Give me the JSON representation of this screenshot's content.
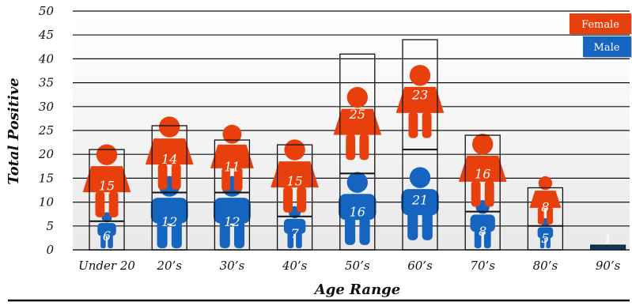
{
  "chart_data": {
    "type": "bar",
    "stacked": true,
    "categories": [
      "Under 20",
      "20’s",
      "30’s",
      "40’s",
      "50’s",
      "60’s",
      "70’s",
      "80’s",
      "90’s"
    ],
    "series": [
      {
        "name": "Male",
        "values": [
          6,
          12,
          12,
          7,
          16,
          21,
          8,
          5,
          1
        ],
        "color": "#1565c0"
      },
      {
        "name": "Female",
        "values": [
          15,
          14,
          11,
          15,
          25,
          23,
          16,
          8,
          0
        ],
        "color": "#e8400c"
      }
    ],
    "xlabel": "Age Range",
    "ylabel": "Total Positive",
    "ylim": [
      0,
      50
    ],
    "yticks": [
      0,
      5,
      10,
      15,
      20,
      25,
      30,
      35,
      40,
      45,
      50
    ],
    "grid": true,
    "legend_position": "top-right",
    "icon": "person-pictogram"
  }
}
